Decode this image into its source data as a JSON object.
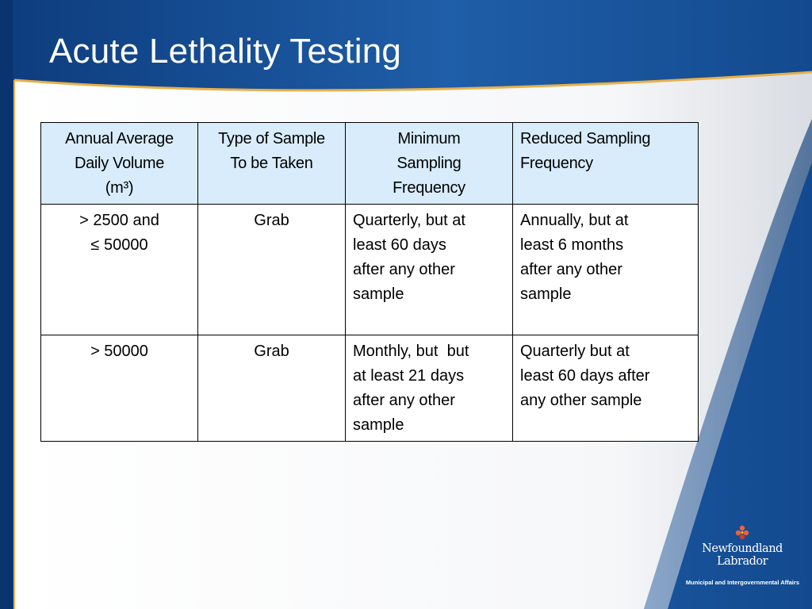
{
  "slide": {
    "title": "Acute Lethality Testing"
  },
  "table": {
    "headers": [
      {
        "lines": [
          "Annual Average",
          "Daily Volume",
          "(m³)"
        ]
      },
      {
        "lines": [
          "Type of Sample",
          "To be Taken"
        ]
      },
      {
        "lines": [
          "Minimum",
          "Sampling",
          "Frequency"
        ]
      },
      {
        "lines": [
          "Reduced Sampling",
          "Frequency"
        ]
      }
    ],
    "rows": [
      {
        "volume": [
          "> 2500 and",
          "≤ 50000"
        ],
        "sample_type": "Grab",
        "minimum_frequency": [
          "Quarterly, but at",
          "least 60 days",
          "after any other",
          "sample"
        ],
        "reduced_frequency": [
          "Annually, but at",
          "least 6 months",
          "after any other",
          "sample"
        ]
      },
      {
        "volume": [
          "> 50000"
        ],
        "sample_type": "Grab",
        "minimum_frequency": [
          "Monthly, but  but",
          "at least 21 days",
          "after any other",
          "sample"
        ],
        "reduced_frequency": [
          "Quarterly but at",
          "least 60 days after",
          "any other sample"
        ]
      }
    ]
  },
  "logo": {
    "name_line_1": "Newfoundland",
    "name_line_2": "Labrador",
    "tagline": "Municipal and Intergovernmental Affairs",
    "icon": "pitcher-plant-icon"
  },
  "colors": {
    "background_blue": "#1c4f92",
    "content_white": "#ffffff",
    "accent_gold": "#e8b04a",
    "header_fill": "#d8ecfc"
  }
}
